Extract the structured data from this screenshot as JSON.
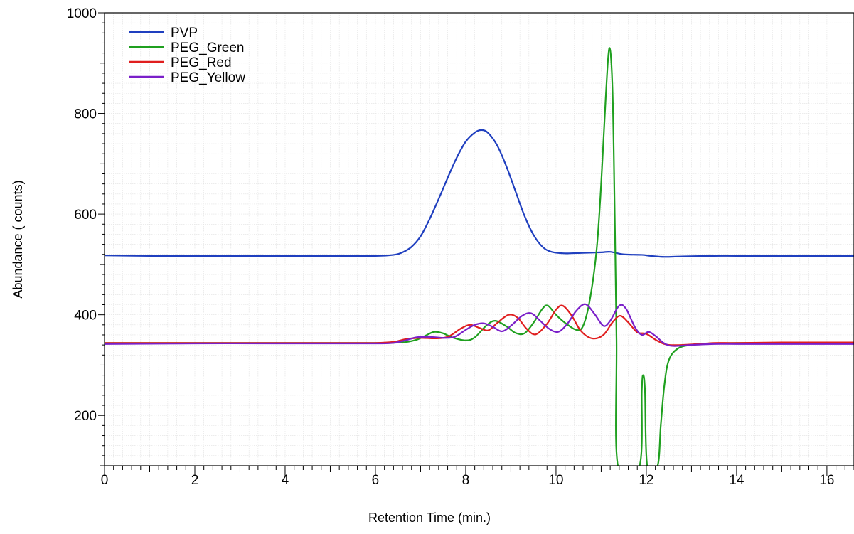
{
  "chart_data": {
    "type": "line",
    "title": "",
    "xlabel": "Retention Time (min.)",
    "ylabel": "Abundance ( counts)",
    "xlim": [
      0,
      16.6
    ],
    "ylim": [
      100,
      1000
    ],
    "xticks": [
      0,
      2,
      4,
      6,
      8,
      10,
      12,
      14,
      16
    ],
    "xtick_labels": [
      "0",
      "2",
      "4",
      "6",
      "8",
      "10",
      "12",
      "14",
      "16"
    ],
    "yticks": [
      200,
      400,
      600,
      800,
      1000
    ],
    "ytick_labels": [
      "200",
      "400",
      "600",
      "800",
      "1000"
    ],
    "grid": true,
    "legend_position": "top-left",
    "series": [
      {
        "name": "PVP",
        "color": "#1f3fbf",
        "points": [
          [
            0,
            518
          ],
          [
            1,
            517
          ],
          [
            2,
            517
          ],
          [
            3,
            517
          ],
          [
            4,
            517
          ],
          [
            5,
            517
          ],
          [
            6,
            517
          ],
          [
            6.4,
            519
          ],
          [
            6.6,
            524
          ],
          [
            6.8,
            535
          ],
          [
            7.0,
            556
          ],
          [
            7.2,
            590
          ],
          [
            7.4,
            630
          ],
          [
            7.6,
            672
          ],
          [
            7.8,
            712
          ],
          [
            8.0,
            744
          ],
          [
            8.2,
            762
          ],
          [
            8.35,
            767
          ],
          [
            8.5,
            761
          ],
          [
            8.7,
            736
          ],
          [
            8.9,
            695
          ],
          [
            9.1,
            646
          ],
          [
            9.3,
            597
          ],
          [
            9.5,
            559
          ],
          [
            9.7,
            535
          ],
          [
            9.9,
            525
          ],
          [
            10.2,
            522
          ],
          [
            10.6,
            523
          ],
          [
            11.0,
            524
          ],
          [
            11.2,
            525
          ],
          [
            11.5,
            520
          ],
          [
            11.9,
            519
          ],
          [
            12.1,
            517
          ],
          [
            12.4,
            515
          ],
          [
            12.8,
            516
          ],
          [
            13.5,
            517
          ],
          [
            14,
            517
          ],
          [
            15,
            517
          ],
          [
            16,
            517
          ],
          [
            16.6,
            517
          ]
        ]
      },
      {
        "name": "PEG_Green",
        "color": "#1fa01f",
        "points": [
          [
            0,
            344
          ],
          [
            2,
            344
          ],
          [
            4,
            344
          ],
          [
            6,
            344
          ],
          [
            6.6,
            345
          ],
          [
            6.9,
            350
          ],
          [
            7.1,
            358
          ],
          [
            7.3,
            366
          ],
          [
            7.5,
            363
          ],
          [
            7.7,
            355
          ],
          [
            8.0,
            349
          ],
          [
            8.2,
            355
          ],
          [
            8.45,
            378
          ],
          [
            8.65,
            388
          ],
          [
            8.9,
            377
          ],
          [
            9.1,
            364
          ],
          [
            9.3,
            363
          ],
          [
            9.5,
            384
          ],
          [
            9.7,
            412
          ],
          [
            9.82,
            418
          ],
          [
            10.0,
            400
          ],
          [
            10.2,
            384
          ],
          [
            10.45,
            370
          ],
          [
            10.6,
            378
          ],
          [
            10.75,
            430
          ],
          [
            10.9,
            530
          ],
          [
            11.0,
            660
          ],
          [
            11.1,
            830
          ],
          [
            11.18,
            930
          ],
          [
            11.25,
            850
          ],
          [
            11.3,
            600
          ],
          [
            11.34,
            350
          ],
          [
            11.37,
            100
          ],
          [
            11.85,
            100
          ],
          [
            11.9,
            250
          ],
          [
            11.93,
            280
          ],
          [
            11.97,
            250
          ],
          [
            12.02,
            100
          ],
          [
            12.25,
            100
          ],
          [
            12.32,
            180
          ],
          [
            12.4,
            260
          ],
          [
            12.5,
            310
          ],
          [
            12.7,
            333
          ],
          [
            13.0,
            340
          ],
          [
            13.5,
            343
          ],
          [
            14,
            344
          ],
          [
            15,
            344
          ],
          [
            16,
            344
          ],
          [
            16.6,
            344
          ]
        ]
      },
      {
        "name": "PEG_Red",
        "color": "#e01e1e",
        "points": [
          [
            0,
            344
          ],
          [
            2,
            344
          ],
          [
            4,
            344
          ],
          [
            5,
            344
          ],
          [
            6,
            344
          ],
          [
            6.4,
            346
          ],
          [
            6.7,
            352
          ],
          [
            7.0,
            354
          ],
          [
            7.3,
            353
          ],
          [
            7.6,
            356
          ],
          [
            7.9,
            373
          ],
          [
            8.1,
            380
          ],
          [
            8.3,
            374
          ],
          [
            8.5,
            369
          ],
          [
            8.7,
            384
          ],
          [
            8.95,
            400
          ],
          [
            9.15,
            394
          ],
          [
            9.35,
            372
          ],
          [
            9.55,
            361
          ],
          [
            9.8,
            382
          ],
          [
            10.0,
            410
          ],
          [
            10.15,
            418
          ],
          [
            10.35,
            398
          ],
          [
            10.55,
            368
          ],
          [
            10.8,
            353
          ],
          [
            11.05,
            360
          ],
          [
            11.25,
            385
          ],
          [
            11.42,
            398
          ],
          [
            11.6,
            385
          ],
          [
            11.8,
            365
          ],
          [
            12.0,
            362
          ],
          [
            12.25,
            348
          ],
          [
            12.5,
            340
          ],
          [
            13.0,
            341
          ],
          [
            13.5,
            344
          ],
          [
            14,
            344
          ],
          [
            15,
            345
          ],
          [
            16,
            345
          ],
          [
            16.6,
            345
          ]
        ]
      },
      {
        "name": "PEG_Yellow",
        "color": "#7a1fc9",
        "points": [
          [
            0,
            342
          ],
          [
            2,
            343
          ],
          [
            4,
            343
          ],
          [
            5,
            343
          ],
          [
            6,
            343
          ],
          [
            6.4,
            344
          ],
          [
            6.7,
            350
          ],
          [
            6.9,
            355
          ],
          [
            7.2,
            356
          ],
          [
            7.5,
            354
          ],
          [
            7.75,
            356
          ],
          [
            8.0,
            370
          ],
          [
            8.2,
            380
          ],
          [
            8.4,
            383
          ],
          [
            8.6,
            376
          ],
          [
            8.8,
            367
          ],
          [
            9.0,
            378
          ],
          [
            9.25,
            398
          ],
          [
            9.45,
            403
          ],
          [
            9.65,
            388
          ],
          [
            9.85,
            372
          ],
          [
            10.05,
            366
          ],
          [
            10.25,
            382
          ],
          [
            10.45,
            408
          ],
          [
            10.65,
            421
          ],
          [
            10.85,
            402
          ],
          [
            11.05,
            378
          ],
          [
            11.2,
            388
          ],
          [
            11.4,
            418
          ],
          [
            11.55,
            412
          ],
          [
            11.75,
            375
          ],
          [
            11.9,
            360
          ],
          [
            12.05,
            366
          ],
          [
            12.2,
            358
          ],
          [
            12.4,
            343
          ],
          [
            12.6,
            338
          ],
          [
            13.0,
            340
          ],
          [
            13.5,
            342
          ],
          [
            14,
            342
          ],
          [
            15,
            342
          ],
          [
            16,
            342
          ],
          [
            16.6,
            342
          ]
        ]
      }
    ]
  }
}
